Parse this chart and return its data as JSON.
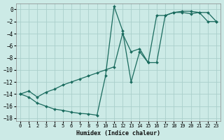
{
  "xlabel": "Humidex (Indice chaleur)",
  "xlim": [
    -0.5,
    23.5
  ],
  "ylim": [
    -18.5,
    1.0
  ],
  "xticks": [
    0,
    1,
    2,
    3,
    4,
    5,
    6,
    7,
    8,
    9,
    10,
    11,
    12,
    13,
    14,
    15,
    16,
    17,
    18,
    19,
    20,
    21,
    22,
    23
  ],
  "yticks": [
    0,
    -2,
    -4,
    -6,
    -8,
    -10,
    -12,
    -14,
    -16,
    -18
  ],
  "bg_color": "#cceae6",
  "grid_color": "#aacfcb",
  "line_color": "#1a6b5e",
  "line1_x": [
    0,
    1,
    2,
    3,
    4,
    5,
    6,
    7,
    8,
    9,
    10,
    11,
    12,
    13,
    14,
    15,
    16,
    17,
    18,
    19,
    20,
    21,
    22,
    23
  ],
  "line1_y": [
    -14.0,
    -14.5,
    -15.5,
    -16.0,
    -16.5,
    -16.7,
    -17.0,
    -17.2,
    -17.3,
    -17.5,
    -11.0,
    0.5,
    -3.5,
    -12.0,
    -7.0,
    -8.8,
    -8.8,
    -1.0,
    -0.5,
    -0.5,
    -0.7,
    -0.5,
    -0.5,
    -2.0
  ],
  "line2_x": [
    0,
    1,
    2,
    3,
    4,
    5,
    6,
    7,
    8,
    9,
    10,
    11,
    12,
    13,
    14,
    15,
    16,
    17,
    18,
    19,
    20,
    21,
    22,
    23
  ],
  "line2_y": [
    -14.0,
    -13.5,
    -14.5,
    -13.7,
    -13.2,
    -12.5,
    -12.0,
    -11.5,
    -11.0,
    -10.5,
    -10.0,
    -9.5,
    -4.0,
    -7.0,
    -6.5,
    -8.8,
    -1.0,
    -1.0,
    -0.5,
    -0.3,
    -0.3,
    -0.5,
    -2.0,
    -2.0
  ]
}
